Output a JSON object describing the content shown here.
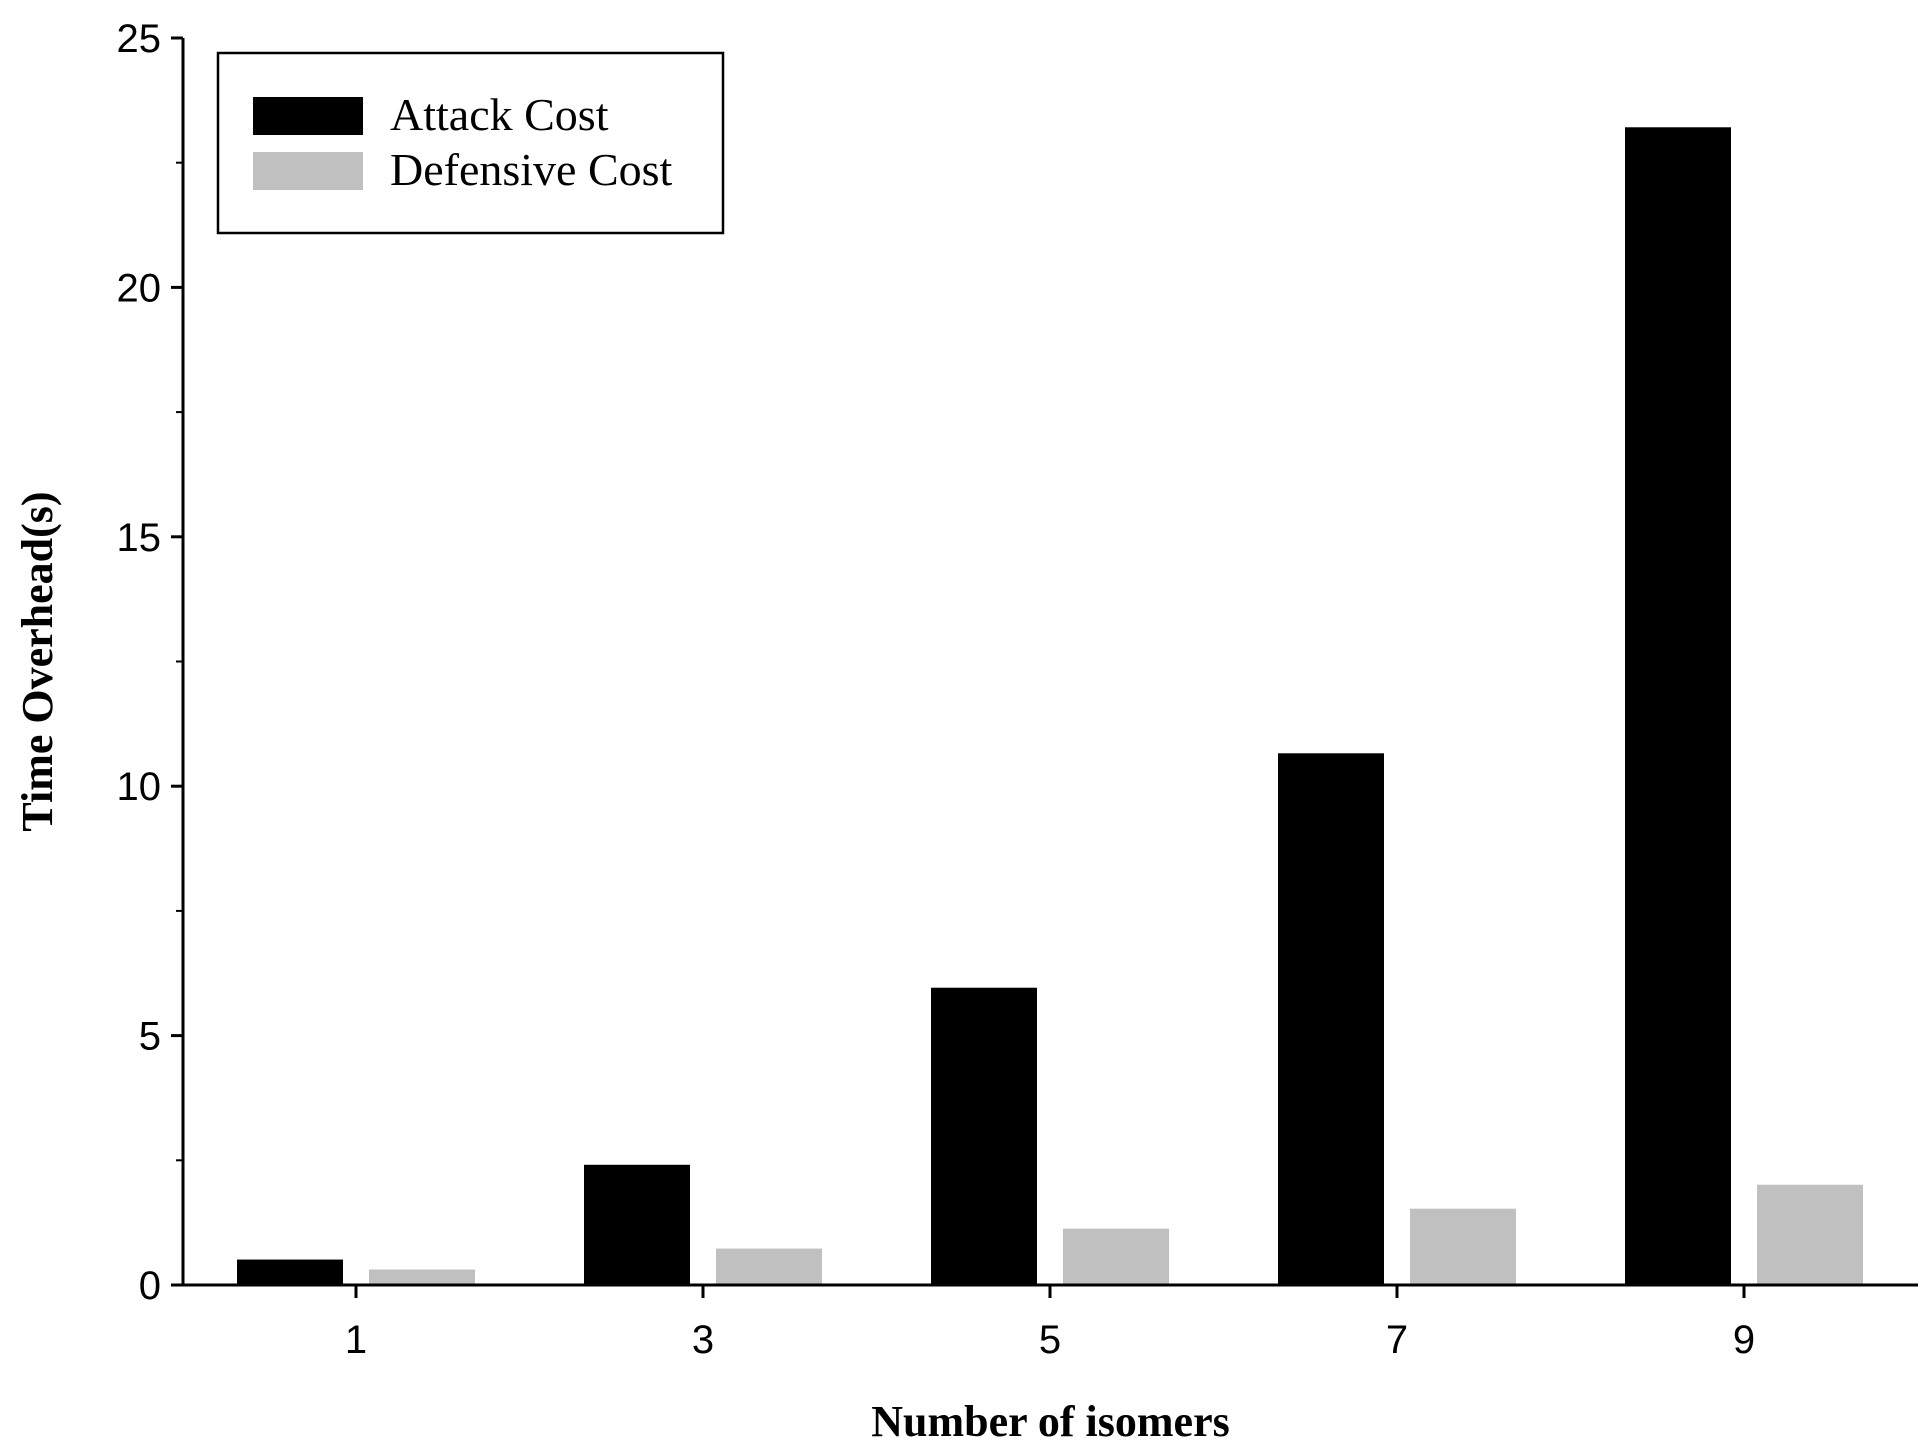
{
  "chart_data": {
    "type": "bar",
    "title": "",
    "xlabel": "Number of isomers",
    "ylabel": "Time Overhead(s)",
    "categories": [
      "1",
      "3",
      "5",
      "7",
      "9"
    ],
    "series": [
      {
        "name": "Attack Cost",
        "color": "#000000",
        "values": [
          0.5,
          2.4,
          5.95,
          10.65,
          23.2
        ]
      },
      {
        "name": "Defensive Cost",
        "color": "#c0c0c0",
        "values": [
          0.3,
          0.72,
          1.12,
          1.52,
          2.0
        ]
      }
    ],
    "ylim": [
      0,
      25
    ],
    "yticks": [
      0,
      5,
      10,
      15,
      20,
      25
    ],
    "grid": false,
    "legend_position": "top-left"
  }
}
